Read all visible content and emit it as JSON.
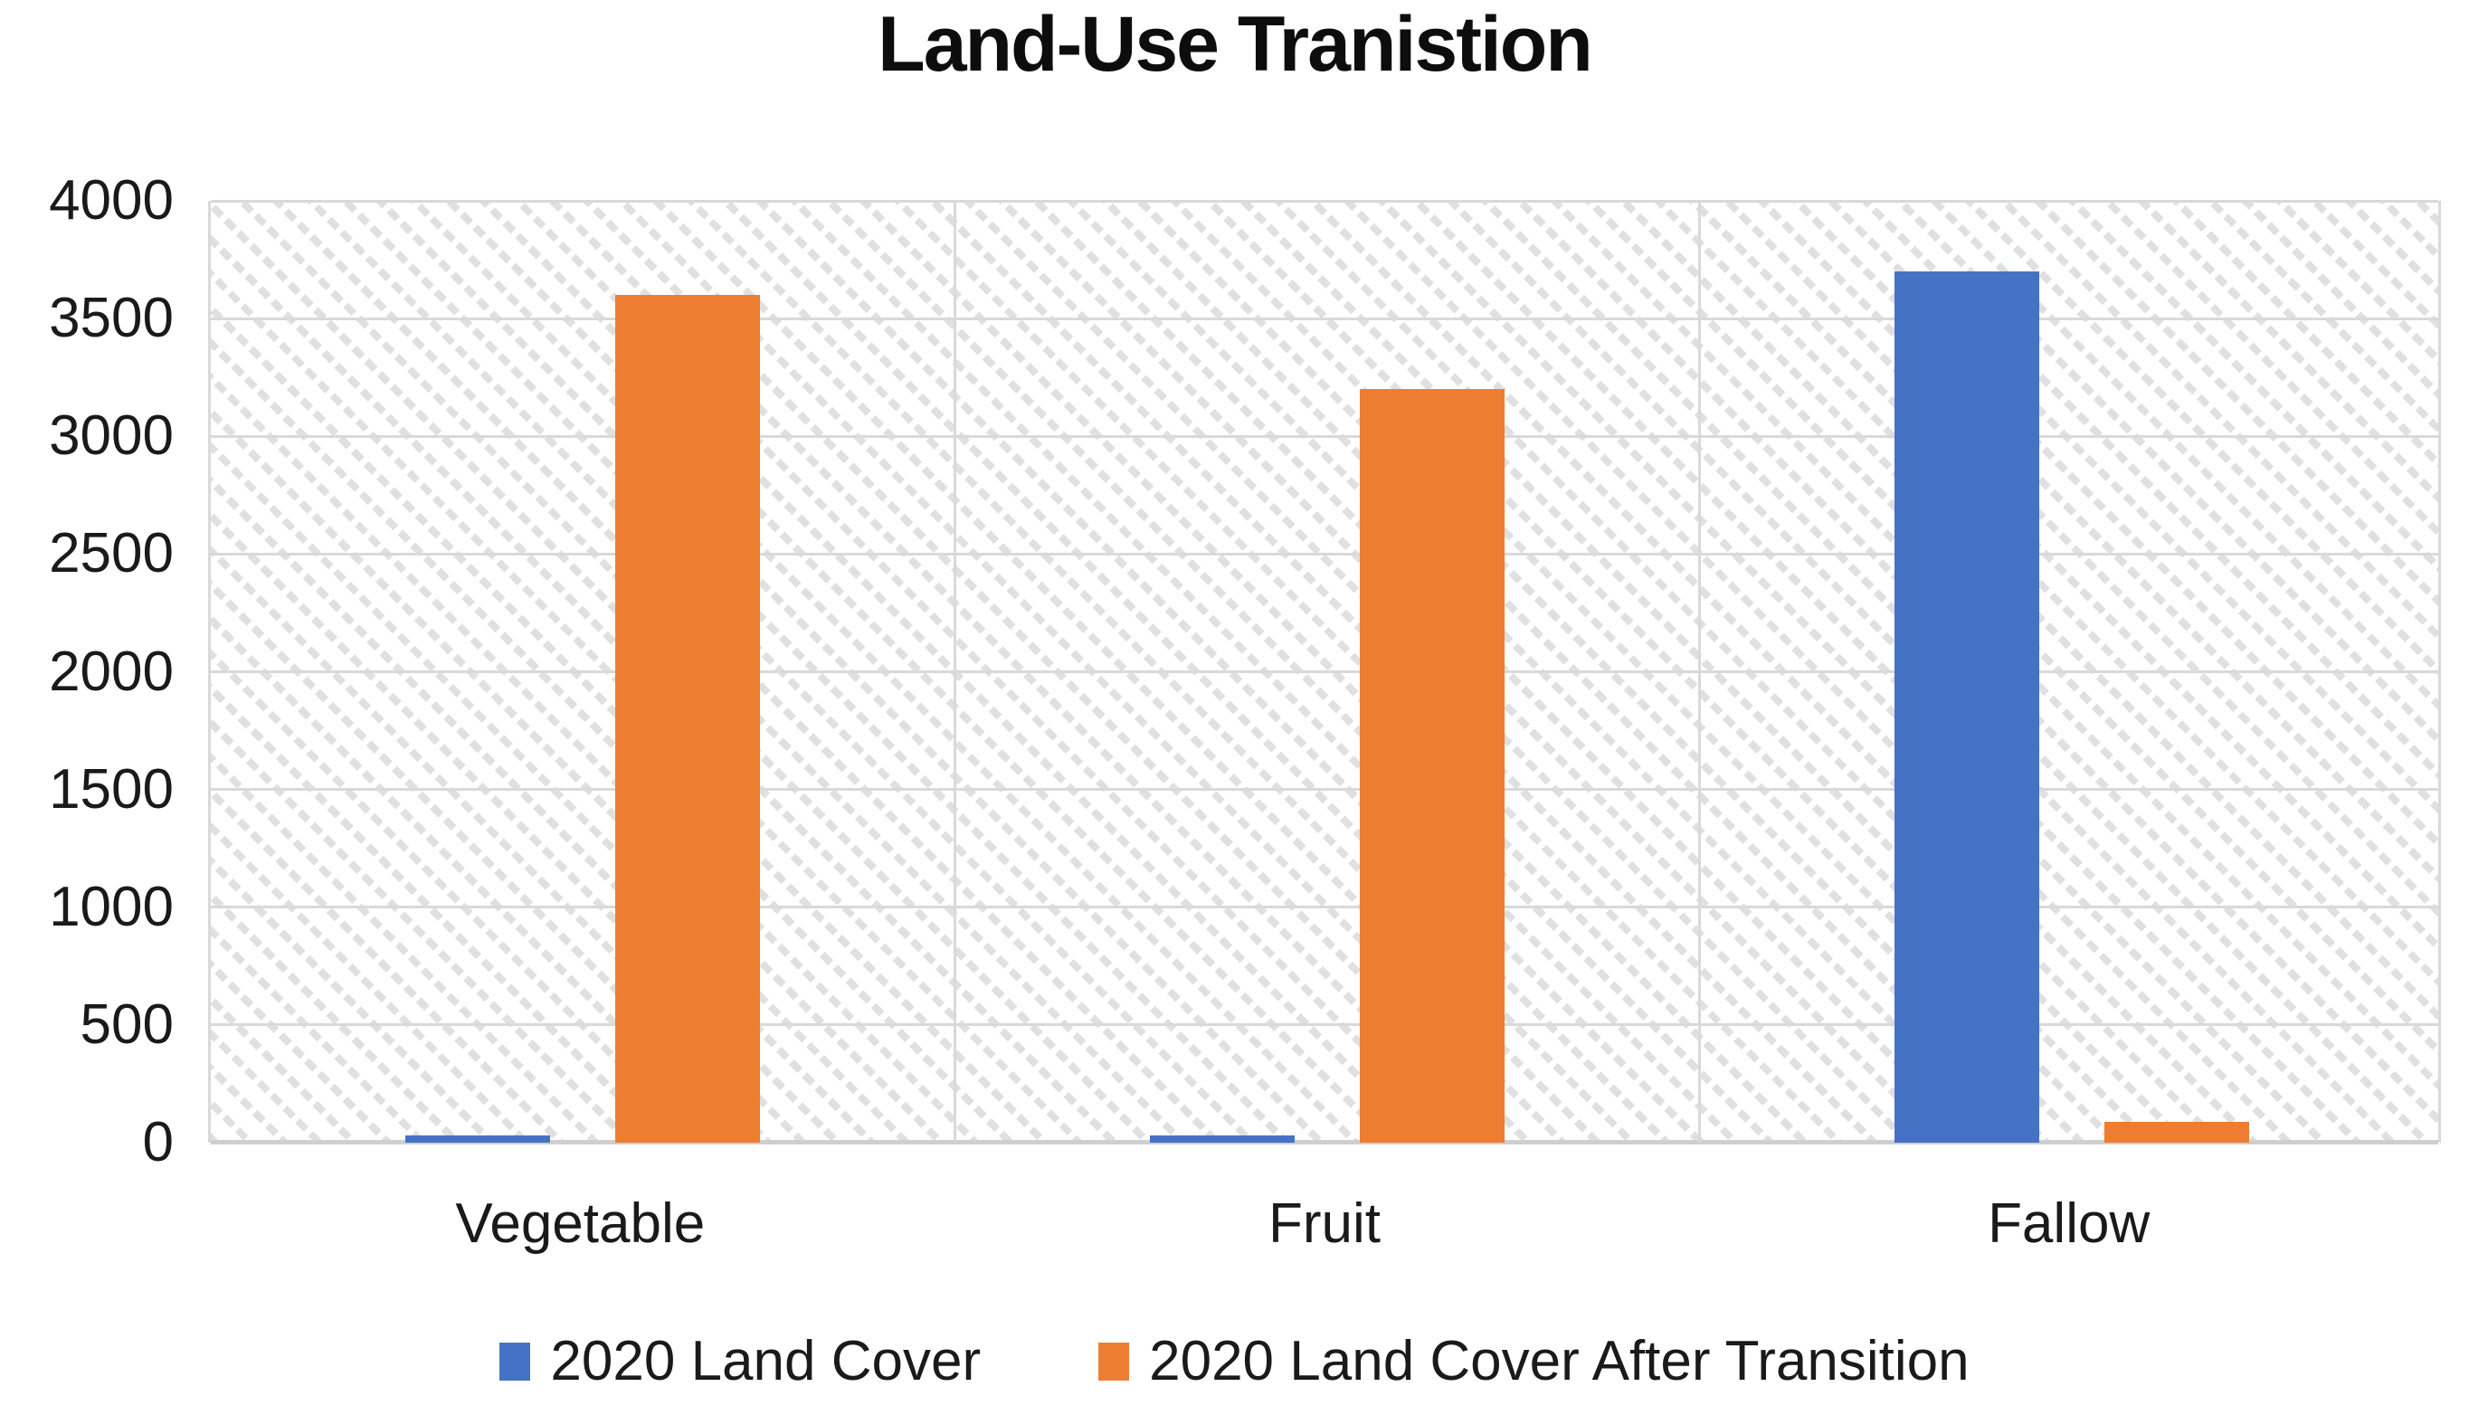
{
  "title": "Land-Use Tranistion",
  "chart_data": {
    "type": "bar",
    "title": "Land-Use Tranistion",
    "categories": [
      "Vegetable",
      "Fruit",
      "Fallow"
    ],
    "series": [
      {
        "name": "2020 Land Cover",
        "color": "#4472C4",
        "values": [
          30,
          30,
          3700
        ]
      },
      {
        "name": "2020 Land Cover After Transition",
        "color": "#ED7D31",
        "values": [
          3600,
          3200,
          90
        ]
      }
    ],
    "ylim": [
      0,
      4000
    ],
    "yticks": [
      0,
      500,
      1000,
      1500,
      2000,
      2500,
      3000,
      3500,
      4000
    ],
    "xlabel": "",
    "ylabel": "",
    "grid": {
      "horizontal": true,
      "vertical_category_separators": true
    },
    "legend_position": "bottom",
    "plot_background": "diagonal-hatch"
  },
  "colors": {
    "series1": "#4472C4",
    "series2": "#ED7D31",
    "gridline": "#D9D9D9",
    "axis_line": "#CFCFCF",
    "text": "#1A1A1A",
    "title_text": "#0D0D0D",
    "background": "#FFFFFF"
  }
}
